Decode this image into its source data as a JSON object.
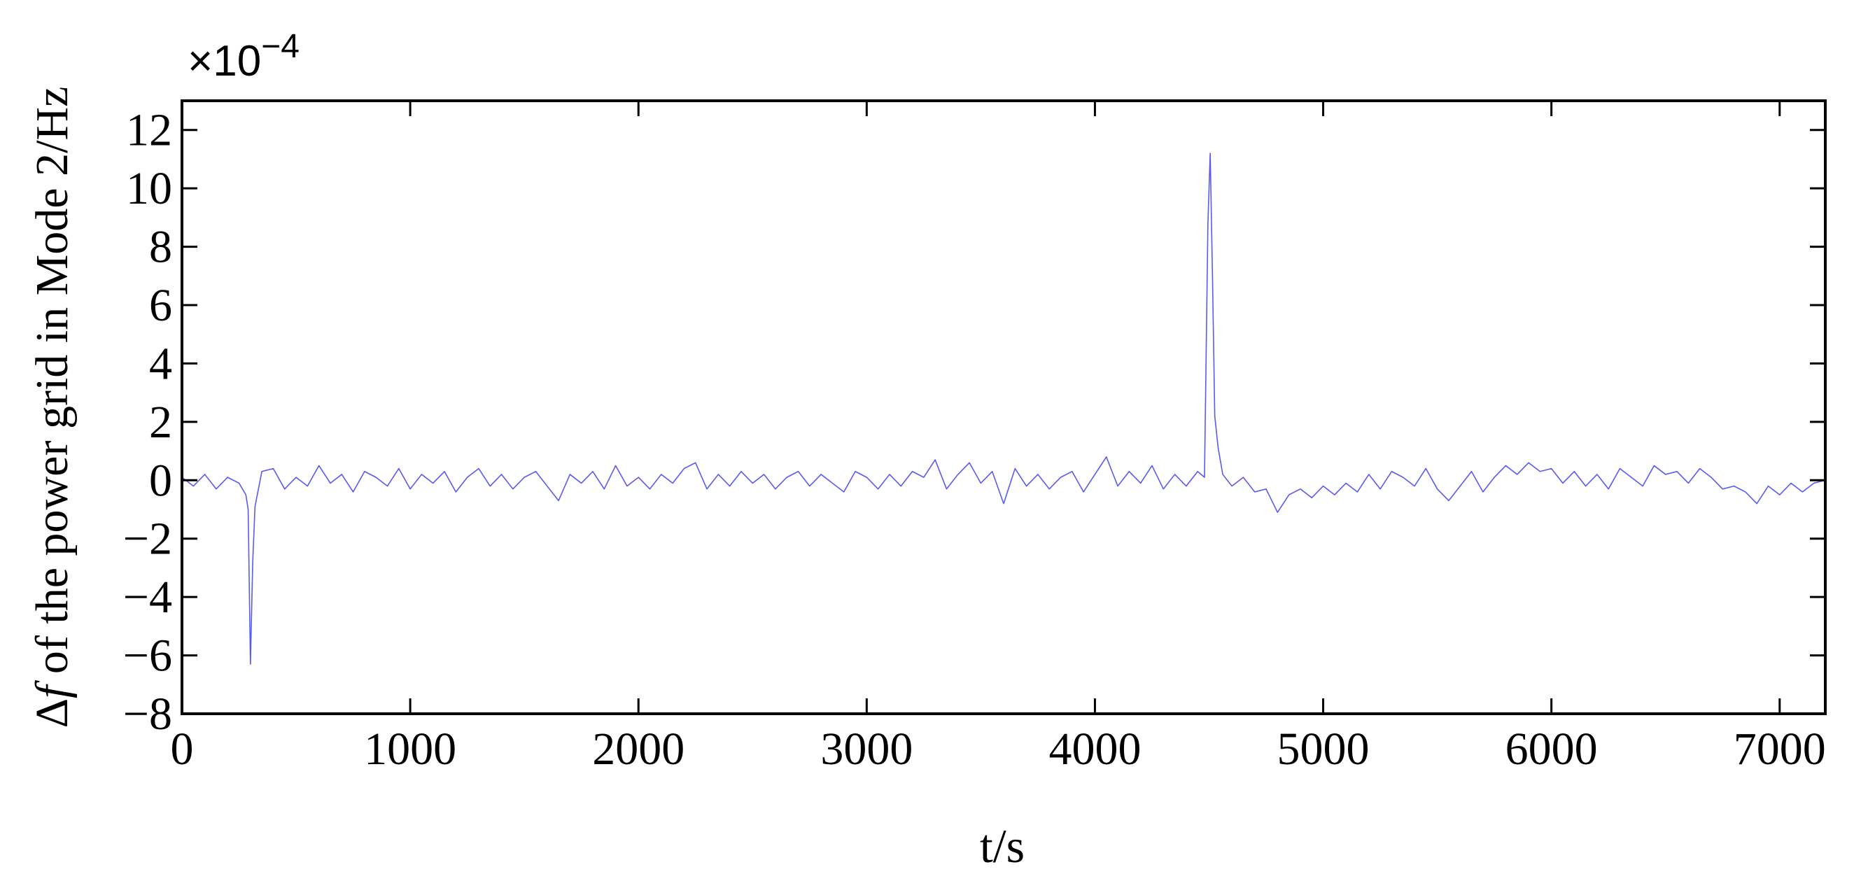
{
  "chart_data": {
    "type": "line",
    "y_multiplier": {
      "base": "×10",
      "exponent": "−4"
    },
    "ylabel": {
      "symbol": "Δ",
      "variable": "f",
      "text": " of the power grid in Mode 2/Hz"
    },
    "xlabel": "t/s",
    "xlim": [
      0,
      7200
    ],
    "xticks": [
      0,
      1000,
      2000,
      3000,
      4000,
      5000,
      6000,
      7000
    ],
    "ylim": [
      -8,
      13
    ],
    "yticks": [
      {
        "value": -8,
        "label": "−8"
      },
      {
        "value": -6,
        "label": "−6"
      },
      {
        "value": -4,
        "label": "−4"
      },
      {
        "value": -2,
        "label": "−2"
      },
      0,
      2,
      4,
      6,
      8,
      10,
      12
    ],
    "grid": false,
    "series": [
      {
        "color": "#5a5af2",
        "x": [
          0,
          50,
          100,
          150,
          200,
          250,
          280,
          290,
          300,
          310,
          320,
          350,
          400,
          450,
          500,
          550,
          600,
          650,
          700,
          750,
          800,
          850,
          900,
          950,
          1000,
          1050,
          1100,
          1150,
          1200,
          1250,
          1300,
          1350,
          1400,
          1450,
          1500,
          1550,
          1600,
          1650,
          1700,
          1750,
          1800,
          1850,
          1900,
          1950,
          2000,
          2050,
          2100,
          2150,
          2200,
          2250,
          2300,
          2350,
          2400,
          2450,
          2500,
          2550,
          2600,
          2650,
          2700,
          2750,
          2800,
          2850,
          2900,
          2950,
          3000,
          3050,
          3100,
          3150,
          3200,
          3250,
          3300,
          3350,
          3400,
          3450,
          3500,
          3550,
          3600,
          3650,
          3700,
          3750,
          3800,
          3850,
          3900,
          3950,
          4000,
          4050,
          4100,
          4150,
          4200,
          4250,
          4300,
          4350,
          4400,
          4450,
          4480,
          4495,
          4505,
          4515,
          4525,
          4540,
          4560,
          4600,
          4650,
          4700,
          4750,
          4800,
          4850,
          4900,
          4950,
          5000,
          5050,
          5100,
          5150,
          5200,
          5250,
          5300,
          5350,
          5400,
          5450,
          5500,
          5550,
          5600,
          5650,
          5700,
          5750,
          5800,
          5850,
          5900,
          5950,
          6000,
          6050,
          6100,
          6150,
          6200,
          6250,
          6300,
          6350,
          6400,
          6450,
          6500,
          6550,
          6600,
          6650,
          6700,
          6750,
          6800,
          6850,
          6900,
          6950,
          7000,
          7050,
          7100,
          7150,
          7200
        ],
        "values": [
          0.1,
          -0.2,
          0.2,
          -0.3,
          0.1,
          -0.1,
          -0.5,
          -1.0,
          -6.3,
          -2.8,
          -0.9,
          0.3,
          0.4,
          -0.3,
          0.1,
          -0.2,
          0.5,
          -0.1,
          0.2,
          -0.4,
          0.3,
          0.1,
          -0.2,
          0.4,
          -0.3,
          0.2,
          -0.1,
          0.3,
          -0.4,
          0.1,
          0.4,
          -0.2,
          0.2,
          -0.3,
          0.1,
          0.3,
          -0.2,
          -0.7,
          0.2,
          -0.1,
          0.3,
          -0.3,
          0.5,
          -0.2,
          0.1,
          -0.3,
          0.2,
          -0.1,
          0.4,
          0.6,
          -0.3,
          0.2,
          -0.2,
          0.3,
          -0.1,
          0.2,
          -0.3,
          0.1,
          0.3,
          -0.2,
          0.2,
          -0.1,
          -0.4,
          0.3,
          0.1,
          -0.3,
          0.2,
          -0.2,
          0.3,
          0.1,
          0.7,
          -0.3,
          0.2,
          0.6,
          -0.1,
          0.3,
          -0.8,
          0.4,
          -0.2,
          0.2,
          -0.3,
          0.1,
          0.3,
          -0.4,
          0.2,
          0.8,
          -0.2,
          0.3,
          -0.1,
          0.5,
          -0.3,
          0.2,
          -0.2,
          0.3,
          0.1,
          8.8,
          11.2,
          7.0,
          2.2,
          1.1,
          0.2,
          -0.2,
          0.1,
          -0.4,
          -0.3,
          -1.1,
          -0.5,
          -0.3,
          -0.6,
          -0.2,
          -0.5,
          -0.1,
          -0.4,
          0.2,
          -0.3,
          0.3,
          0.1,
          -0.2,
          0.4,
          -0.3,
          -0.7,
          -0.2,
          0.3,
          -0.4,
          0.1,
          0.5,
          0.2,
          0.6,
          0.3,
          0.4,
          -0.1,
          0.3,
          -0.2,
          0.2,
          -0.3,
          0.4,
          0.1,
          -0.2,
          0.5,
          0.2,
          0.3,
          -0.1,
          0.4,
          0.1,
          -0.3,
          -0.2,
          -0.4,
          -0.8,
          -0.2,
          -0.5,
          -0.1,
          -0.4,
          -0.1,
          0.0
        ]
      }
    ]
  }
}
